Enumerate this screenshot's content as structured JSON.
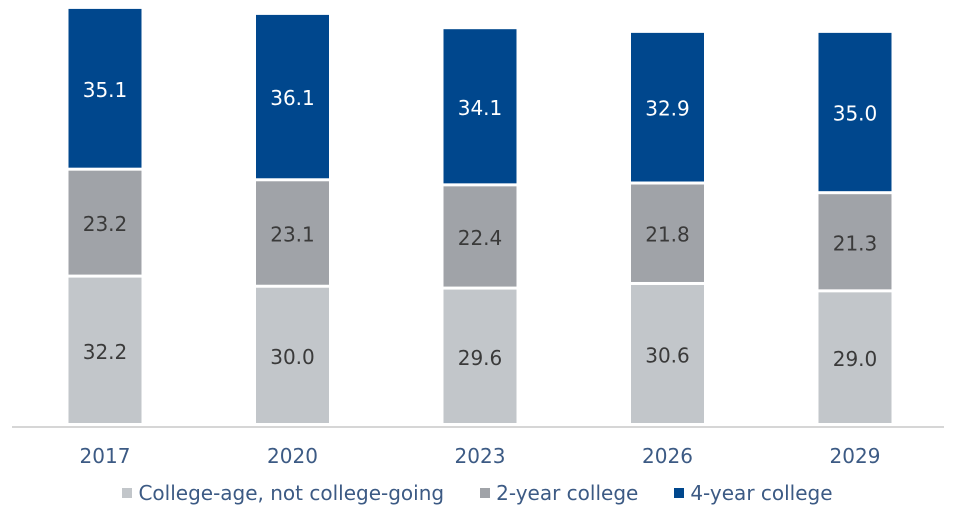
{
  "chart_data": {
    "type": "bar",
    "stacked": true,
    "categories": [
      "2017",
      "2020",
      "2023",
      "2026",
      "2029"
    ],
    "series": [
      {
        "name": "College-age, not college-going",
        "color": "#c2c6ca",
        "label_color": "#3a3a3a",
        "values": [
          32.2,
          30.0,
          29.6,
          30.6,
          29.0
        ],
        "labels": [
          "32.2",
          "30.0",
          "29.6",
          "30.6",
          "29.0"
        ]
      },
      {
        "name": "2-year college",
        "color": "#a0a3a8",
        "label_color": "#3a3a3a",
        "values": [
          23.2,
          23.1,
          22.4,
          21.8,
          21.3
        ],
        "labels": [
          "23.2",
          "23.1",
          "22.4",
          "21.8",
          "21.3"
        ]
      },
      {
        "name": "4-year college",
        "color": "#00478d",
        "label_color": "#ffffff",
        "values": [
          35.1,
          36.1,
          34.1,
          32.9,
          35.0
        ],
        "labels": [
          "35.1",
          "36.1",
          "34.1",
          "32.9",
          "35.0"
        ]
      }
    ],
    "ylim": [
      0,
      92
    ],
    "grid": false,
    "legend_position": "bottom",
    "title": "",
    "xlabel": "",
    "ylabel": ""
  }
}
